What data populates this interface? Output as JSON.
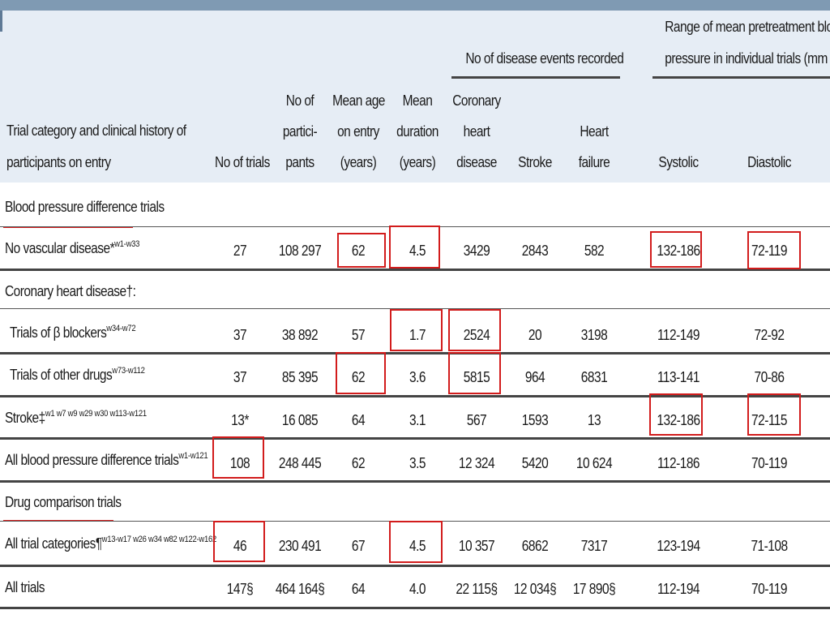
{
  "group_headers": {
    "events": "No of disease events recorded",
    "range_line1": "Range of mean pretreatment blood",
    "range_line2": "pressure in individual trials (mm Hg)"
  },
  "columns": {
    "category_l1": "Trial category and clinical history of",
    "category_l2": "participants on entry",
    "trials": "No of trials",
    "particip_l1": "No of",
    "particip_l2": "partici-",
    "particip_l3": "pants",
    "age_l1": "Mean age",
    "age_l2": "on entry",
    "age_l3": "(years)",
    "duration_l1": "Mean",
    "duration_l2": "duration",
    "duration_l3": "(years)",
    "chd_l1": "Coronary",
    "chd_l2": "heart",
    "chd_l3": "disease",
    "stroke": "Stroke",
    "hf_l1": "Heart",
    "hf_l2": "failure",
    "systolic": "Systolic",
    "diastolic": "Diastolic"
  },
  "sections": {
    "bp_diff": "Blood pressure difference trials",
    "chd_section": "Coronary heart disease†:",
    "drug_comp": "Drug comparison trials"
  },
  "rows": {
    "nvd": {
      "label": "No vascular disease*",
      "sup": "w1-w33",
      "trials": "27",
      "participants": "108 297",
      "age": "62",
      "duration": "4.5",
      "chd": "3429",
      "stroke": "2843",
      "hf": "582",
      "systolic": "132-186",
      "diastolic": "72-119"
    },
    "beta": {
      "label": "Trials of β blockers",
      "sup": "w34-w72",
      "trials": "37",
      "participants": "38 892",
      "age": "57",
      "duration": "1.7",
      "chd": "2524",
      "stroke": "20",
      "hf": "3198",
      "systolic": "112-149",
      "diastolic": "72-92"
    },
    "other": {
      "label": "Trials of other drugs",
      "sup": "w73-w112",
      "trials": "37",
      "participants": "85 395",
      "age": "62",
      "duration": "3.6",
      "chd": "5815",
      "stroke": "964",
      "hf": "6831",
      "systolic": "113-141",
      "diastolic": "70-86"
    },
    "strk": {
      "label": "Stroke‡",
      "sup": "w1 w7 w9 w29 w30 w113-w121",
      "trials": "13*",
      "participants": "16 085",
      "age": "64",
      "duration": "3.1",
      "chd": "567",
      "stroke": "1593",
      "hf": "13",
      "systolic": "132-186",
      "diastolic": "72-115"
    },
    "allbp": {
      "label": "All blood pressure difference trials",
      "sup": "w1-w121",
      "trials": "108",
      "participants": "248 445",
      "age": "62",
      "duration": "3.5",
      "chd": "12 324",
      "stroke": "5420",
      "hf": "10 624",
      "systolic": "112-186",
      "diastolic": "70-119"
    },
    "allcat": {
      "label": "All trial categories¶",
      "sup": "w13-w17 w26 w34 w82 w122-w162",
      "trials": "46",
      "participants": "230 491",
      "age": "67",
      "duration": "4.5",
      "chd": "10 357",
      "stroke": "6862",
      "hf": "7317",
      "systolic": "123-194",
      "diastolic": "71-108"
    },
    "alltr": {
      "label": "All trials",
      "sup": "",
      "trials": "147§",
      "participants": "464 164§",
      "age": "64",
      "duration": "4.0",
      "chd": "22 115§",
      "stroke": "12 034§",
      "hf": "17 890§",
      "systolic": "112-194",
      "diastolic": "70-119"
    }
  },
  "colors": {
    "header_bg": "#e6edf5",
    "top_bar": "#7f9ab3",
    "highlight": "#d21c1c"
  }
}
